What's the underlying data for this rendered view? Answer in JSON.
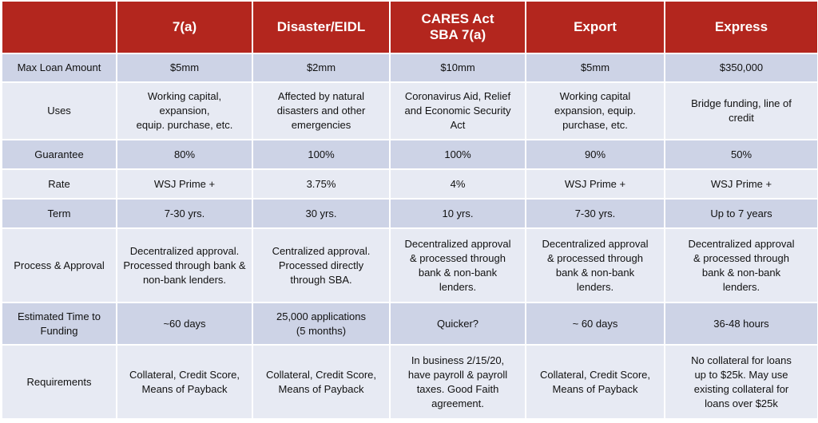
{
  "table": {
    "columns": [
      "7(a)",
      "Disaster/EIDL",
      "CARES Act\nSBA 7(a)",
      "Export",
      "Express"
    ],
    "rows": [
      {
        "label": "Max Loan Amount",
        "cells": [
          "$5mm",
          "$2mm",
          "$10mm",
          "$5mm",
          "$350,000"
        ]
      },
      {
        "label": "Uses",
        "cells": [
          "Working capital, expansion,\nequip. purchase, etc.",
          "Affected by natural\ndisasters and other\nemergencies",
          "Coronavirus Aid, Relief\nand Economic Security\nAct",
          "Working capital\nexpansion, equip.\npurchase, etc.",
          "Bridge funding, line of\ncredit"
        ]
      },
      {
        "label": "Guarantee",
        "cells": [
          "80%",
          "100%",
          "100%",
          "90%",
          "50%"
        ]
      },
      {
        "label": "Rate",
        "cells": [
          "WSJ Prime +",
          "3.75%",
          "4%",
          "WSJ Prime +",
          "WSJ Prime +"
        ]
      },
      {
        "label": "Term",
        "cells": [
          "7-30 yrs.",
          "30 yrs.",
          "10 yrs.",
          "7-30 yrs.",
          "Up to 7 years"
        ]
      },
      {
        "label": "Process & Approval",
        "cells": [
          "Decentralized approval.\nProcessed through bank &\nnon-bank lenders.",
          "Centralized approval.\nProcessed directly\nthrough SBA.",
          "Decentralized approval\n& processed through\nbank & non-bank\nlenders.",
          "Decentralized approval\n& processed through\nbank & non-bank\nlenders.",
          "Decentralized approval\n& processed through\nbank & non-bank\nlenders."
        ]
      },
      {
        "label": "Estimated Time to\nFunding",
        "cells": [
          "~60 days",
          "25,000 applications\n(5 months)",
          "Quicker?",
          "~ 60 days",
          "36-48 hours"
        ]
      },
      {
        "label": "Requirements",
        "cells": [
          "Collateral, Credit Score,\nMeans of Payback",
          "Collateral, Credit Score,\nMeans of Payback",
          "In business 2/15/20,\nhave payroll & payroll\ntaxes.  Good Faith\nagreement.",
          "Collateral, Credit Score,\nMeans of Payback",
          "No collateral for loans\nup to $25k. May use\nexisting collateral for\nloans over $25k"
        ]
      }
    ]
  }
}
